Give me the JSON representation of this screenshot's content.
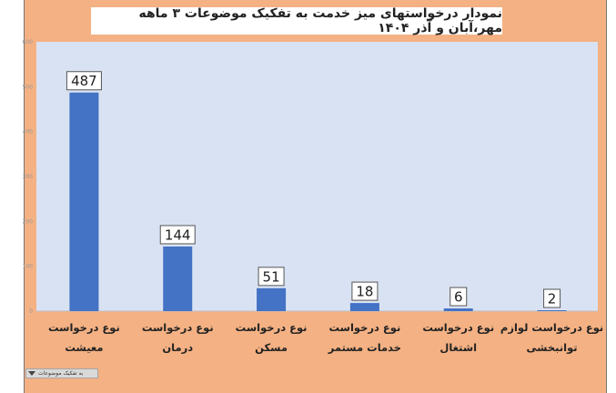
{
  "chart_data": {
    "type": "bar",
    "title": "نمودار درخواستهای میز خدمت به تفکیک موضوعات ۳ ماهه مهر،آبان و آذر ۱۴۰۴",
    "categories": [
      [
        "نوع درخواست",
        "معیشت"
      ],
      [
        "نوع درخواست",
        "درمان"
      ],
      [
        "نوع درخواست",
        "مسکن"
      ],
      [
        "نوع درخواست",
        "خدمات مستمر"
      ],
      [
        "نوع درخواست",
        "اشتغال"
      ],
      [
        "نوع درخواست لوازم",
        "توانبخشی"
      ]
    ],
    "values": [
      487,
      144,
      51,
      18,
      6,
      2
    ],
    "ylim": [
      0,
      600
    ],
    "y_ticks": [
      "600",
      "500",
      "400",
      "300",
      "200",
      "100",
      "0"
    ],
    "bar_color": "#4472c4",
    "plot_bg": "#d9e2f3",
    "frame_color": "#f4b183",
    "grid": false,
    "legend": "none"
  },
  "filter": {
    "label": "به تفکیک موضوعات",
    "icon": "dropdown-triangle-icon"
  }
}
